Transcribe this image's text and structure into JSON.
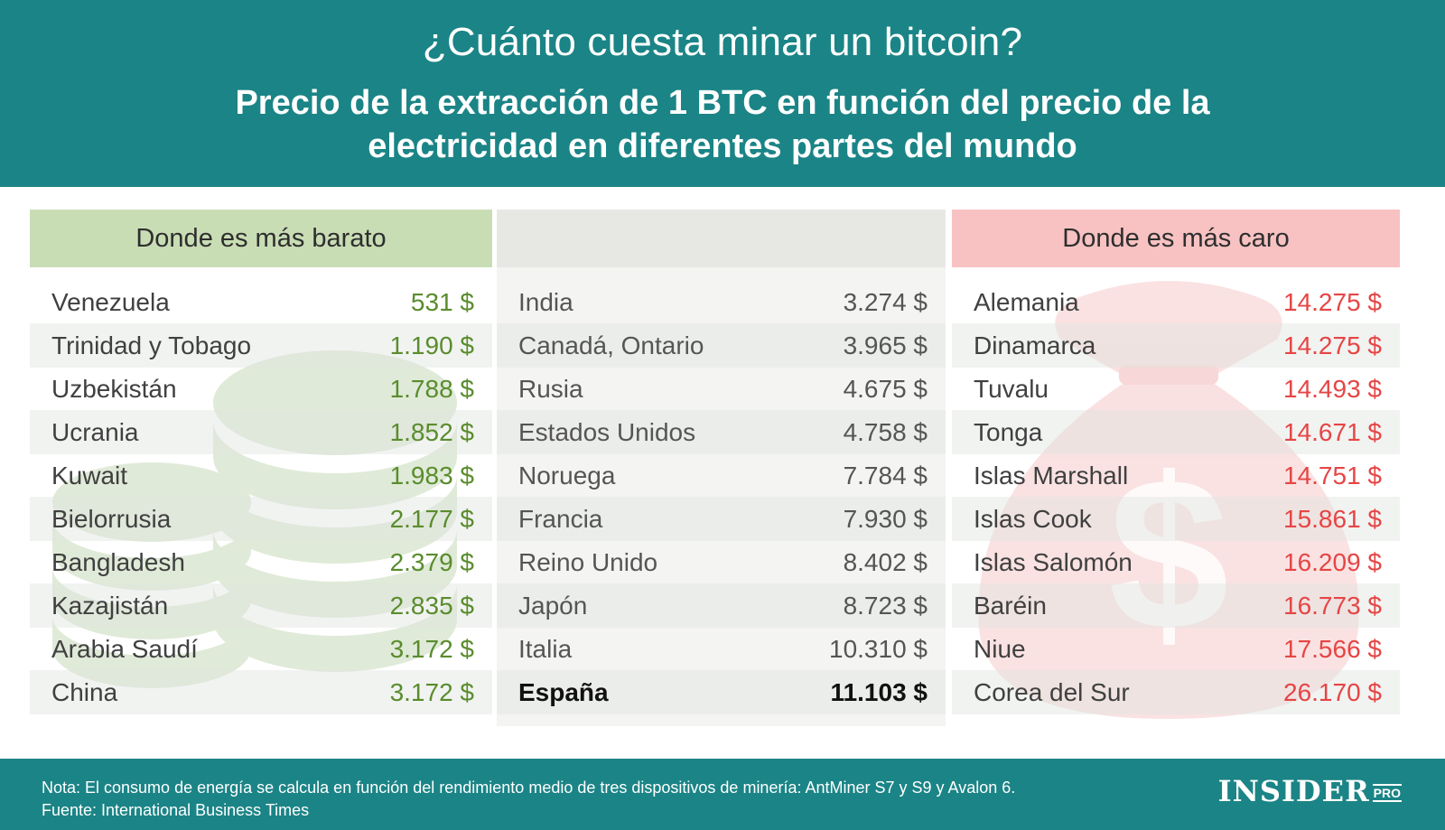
{
  "header": {
    "title": "¿Cuánto cuesta minar un bitcoin?",
    "subtitle": "Precio de la extracción de 1 BTC en función del precio de la electricidad en diferentes partes del mundo"
  },
  "colors": {
    "teal": "#1b8486",
    "cheap_header": "#c9ddb5",
    "cheap_value": "#5a8c2d",
    "expensive_header": "#f8c2c2",
    "expensive_value": "#e64545"
  },
  "chart_data": {
    "type": "table",
    "columns": [
      {
        "heading": "Donde es más barato",
        "rows": [
          {
            "country": "Venezuela",
            "value": "531 $"
          },
          {
            "country": "Trinidad y Tobago",
            "value": "1.190 $"
          },
          {
            "country": "Uzbekistán",
            "value": "1.788 $"
          },
          {
            "country": "Ucrania",
            "value": "1.852 $"
          },
          {
            "country": "Kuwait",
            "value": "1.983 $"
          },
          {
            "country": "Bielorrusia",
            "value": "2.177 $"
          },
          {
            "country": "Bangladesh",
            "value": "2.379 $"
          },
          {
            "country": "Kazajistán",
            "value": "2.835 $"
          },
          {
            "country": "Arabia Saudí",
            "value": "3.172 $"
          },
          {
            "country": "China",
            "value": "3.172 $"
          }
        ]
      },
      {
        "heading": "",
        "rows": [
          {
            "country": "India",
            "value": "3.274 $"
          },
          {
            "country": "Canadá, Ontario",
            "value": "3.965 $"
          },
          {
            "country": "Rusia",
            "value": "4.675 $"
          },
          {
            "country": "Estados Unidos",
            "value": "4.758 $"
          },
          {
            "country": "Noruega",
            "value": "7.784 $"
          },
          {
            "country": "Francia",
            "value": "7.930 $"
          },
          {
            "country": "Reino Unido",
            "value": "8.402 $"
          },
          {
            "country": "Japón",
            "value": "8.723 $"
          },
          {
            "country": "Italia",
            "value": "10.310 $"
          },
          {
            "country": "España",
            "value": "11.103 $",
            "highlight": true
          }
        ]
      },
      {
        "heading": "Donde es más caro",
        "rows": [
          {
            "country": "Alemania",
            "value": "14.275 $"
          },
          {
            "country": "Dinamarca",
            "value": "14.275 $"
          },
          {
            "country": "Tuvalu",
            "value": "14.493 $"
          },
          {
            "country": "Tonga",
            "value": "14.671 $"
          },
          {
            "country": "Islas Marshall",
            "value": "14.751 $"
          },
          {
            "country": "Islas Cook",
            "value": "15.861 $"
          },
          {
            "country": "Islas Salomón",
            "value": "16.209 $"
          },
          {
            "country": "Baréin",
            "value": "16.773 $"
          },
          {
            "country": "Niue",
            "value": "17.566 $"
          },
          {
            "country": "Corea del Sur",
            "value": "26.170 $"
          }
        ]
      }
    ]
  },
  "footer": {
    "note": "Nota: El consumo de energía se calcula en función del rendimiento medio de tres dispositivos de minería: AntMiner S7 y S9 y Avalon 6.",
    "source": "Fuente: International Business Times",
    "logo_main": "INSIDER",
    "logo_pro": "PRO"
  },
  "icons": {
    "left_background": "coin-stack-icon",
    "right_background": "money-bag-icon"
  }
}
